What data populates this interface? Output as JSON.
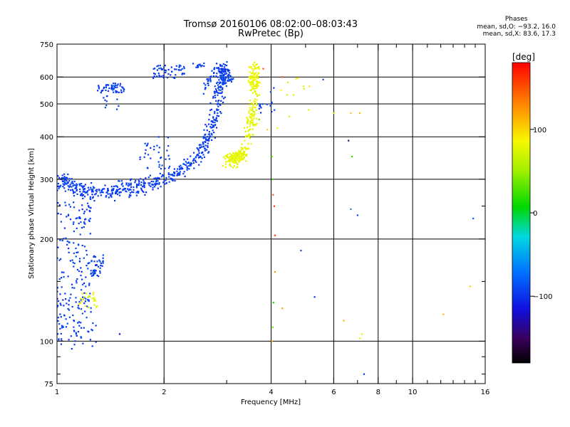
{
  "header": {
    "title_line1": "Tromsø 20160106 08:02:00–08:03:43",
    "title_line2": "RwPretec (Bp)"
  },
  "stats": {
    "heading": "Phases",
    "o_mode": "mean, sd,O: −93.2, 16.0",
    "x_mode": "mean, sd,X:  83.6, 17.3"
  },
  "colorbar": {
    "title": "[deg]",
    "min": -180,
    "max": 180,
    "tick_values": [
      100,
      0,
      -100
    ],
    "tick_labels": [
      "100",
      "0",
      "−100"
    ]
  },
  "chart_data": {
    "type": "scatter",
    "xlabel": "Frequency [MHz]",
    "ylabel": "Stationary phase Virtual Height [km]",
    "xscale": "log",
    "yscale": "log",
    "xlim": [
      1,
      16
    ],
    "ylim": [
      75,
      750
    ],
    "x_ticks": [
      1,
      2,
      4,
      6,
      8,
      10,
      16
    ],
    "x_tick_labels": [
      "1",
      "2",
      "4",
      "6",
      "8",
      "10",
      "16"
    ],
    "x_minor_ticks": [
      3,
      5,
      7,
      9,
      11,
      12,
      13,
      14,
      15
    ],
    "y_ticks": [
      75,
      100,
      200,
      300,
      400,
      500,
      600,
      750
    ],
    "y_tick_labels": [
      "75",
      "100",
      "200",
      "300",
      "400",
      "500",
      "600",
      "750"
    ],
    "y_minor_ticks": [
      80,
      90,
      150,
      250
    ],
    "grid": true,
    "series": [
      {
        "mode": "O-trace",
        "phase_deg": -95,
        "segments": [
          {
            "shape": "curve",
            "points": [
              [
                1.0,
                280
              ],
              [
                1.05,
                300
              ],
              [
                1.12,
                282
              ],
              [
                1.2,
                276
              ],
              [
                1.3,
                275
              ],
              [
                1.45,
                277
              ],
              [
                1.6,
                282
              ],
              [
                1.8,
                290
              ],
              [
                2.0,
                300
              ],
              [
                2.2,
                315
              ],
              [
                2.4,
                338
              ],
              [
                2.55,
                365
              ],
              [
                2.65,
                395
              ],
              [
                2.75,
                440
              ],
              [
                2.82,
                500
              ],
              [
                2.88,
                560
              ],
              [
                2.92,
                610
              ],
              [
                2.95,
                645
              ]
            ],
            "count": 620,
            "x_jitter": 0.05,
            "y_jitter": 0.07,
            "phase_jitter": 12
          },
          {
            "shape": "curve",
            "points": [
              [
                2.6,
                560
              ],
              [
                2.85,
                640
              ],
              [
                3.1,
                600
              ]
            ],
            "count": 60,
            "x_jitter": 0.03,
            "y_jitter": 0.05,
            "phase_jitter": 12
          },
          {
            "shape": "cloud",
            "x": [
              1.0,
              1.25
            ],
            "y": [
              100,
              260
            ],
            "count": 200,
            "phase_jitter": 15
          },
          {
            "shape": "cloud",
            "x": [
              1.25,
              1.35
            ],
            "y": [
              155,
              180
            ],
            "count": 40,
            "phase_jitter": 12
          },
          {
            "shape": "cloud",
            "x": [
              1.3,
              1.55
            ],
            "y": [
              540,
              575
            ],
            "count": 55,
            "phase_jitter": 12
          },
          {
            "shape": "cloud",
            "x": [
              1.35,
              1.5
            ],
            "y": [
              480,
              530
            ],
            "count": 10,
            "phase_jitter": 12
          },
          {
            "shape": "cloud",
            "x": [
              1.85,
              2.3
            ],
            "y": [
              595,
              650
            ],
            "count": 55,
            "phase_jitter": 12
          },
          {
            "shape": "cloud",
            "x": [
              2.4,
              2.6
            ],
            "y": [
              640,
              660
            ],
            "count": 12,
            "phase_jitter": 12
          },
          {
            "shape": "cloud",
            "x": [
              1.7,
              2.1
            ],
            "y": [
              320,
              400
            ],
            "count": 35,
            "phase_jitter": 12
          },
          {
            "shape": "cloud",
            "x": [
              3.7,
              4.1
            ],
            "y": [
              470,
              560
            ],
            "count": 15,
            "phase_jitter": 12
          },
          {
            "shape": "cloud",
            "x": [
              1.0,
              1.3
            ],
            "y": [
              95,
              130
            ],
            "count": 25,
            "phase_jitter": 12
          }
        ]
      },
      {
        "mode": "X-trace",
        "phase_deg": 80,
        "segments": [
          {
            "shape": "curve",
            "points": [
              [
                2.95,
                345
              ],
              [
                3.1,
                340
              ],
              [
                3.25,
                345
              ],
              [
                3.4,
                370
              ],
              [
                3.5,
                420
              ],
              [
                3.55,
                480
              ],
              [
                3.58,
                560
              ],
              [
                3.6,
                640
              ]
            ],
            "count": 260,
            "x_jitter": 0.04,
            "y_jitter": 0.06,
            "phase_jitter": 15
          },
          {
            "shape": "cloud",
            "x": [
              3.45,
              3.7
            ],
            "y": [
              560,
              650
            ],
            "count": 40,
            "phase_jitter": 10
          },
          {
            "shape": "cloud",
            "x": [
              3.05,
              3.35
            ],
            "y": [
              340,
              360
            ],
            "count": 50,
            "phase_jitter": 12
          },
          {
            "shape": "cloud",
            "x": [
              4.1,
              5.2
            ],
            "y": [
              400,
              600
            ],
            "count": 12,
            "phase_jitter": 20
          },
          {
            "shape": "cloud",
            "x": [
              1.15,
              1.3
            ],
            "y": [
              125,
              140
            ],
            "count": 25,
            "phase_jitter": 30
          }
        ]
      },
      {
        "mode": "scattered echoes",
        "points": [
          [
            4.02,
            350,
            40
          ],
          [
            4.05,
            300,
            20
          ],
          [
            4.05,
            270,
            150
          ],
          [
            4.08,
            250,
            160
          ],
          [
            4.1,
            205,
            160
          ],
          [
            4.06,
            130,
            10
          ],
          [
            4.04,
            110,
            40
          ],
          [
            4.02,
            100,
            120
          ],
          [
            4.1,
            160,
            120
          ],
          [
            4.3,
            125,
            120
          ],
          [
            4.3,
            600,
            150
          ],
          [
            4.85,
            185,
            -90
          ],
          [
            5.3,
            135,
            -100
          ],
          [
            5.6,
            590,
            -90
          ],
          [
            6.0,
            470,
            70
          ],
          [
            6.4,
            115,
            110
          ],
          [
            6.6,
            390,
            -140
          ],
          [
            6.7,
            470,
            100
          ],
          [
            6.7,
            245,
            -60
          ],
          [
            6.75,
            350,
            20
          ],
          [
            7.0,
            235,
            -90
          ],
          [
            7.1,
            102,
            80
          ],
          [
            7.2,
            105,
            90
          ],
          [
            7.3,
            80,
            -100
          ],
          [
            7.1,
            470,
            110
          ],
          [
            12.2,
            120,
            110
          ],
          [
            14.5,
            145,
            100
          ],
          [
            14.8,
            230,
            -80
          ],
          [
            3.8,
            635,
            150
          ],
          [
            3.7,
            500,
            -60
          ],
          [
            3.7,
            450,
            40
          ],
          [
            3.9,
            420,
            100
          ],
          [
            1.5,
            105,
            -120
          ],
          [
            1.1,
            95,
            -100
          ]
        ]
      }
    ]
  }
}
